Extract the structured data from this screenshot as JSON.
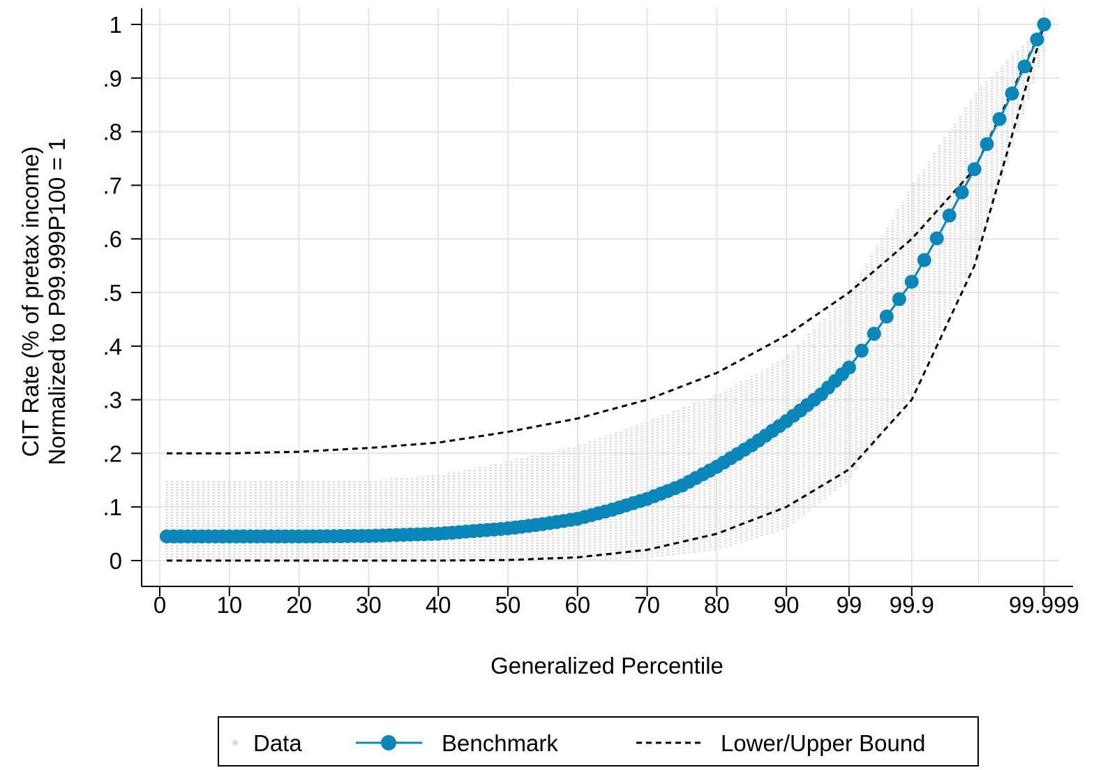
{
  "chart_data": {
    "type": "scatter",
    "xlabel": "Generalized Percentile",
    "ylabel_lines": [
      "CIT Rate (% of pretax income)",
      "Normalized to P99.999P100 = 1"
    ],
    "x_ticks": [
      "0",
      "10",
      "20",
      "30",
      "40",
      "50",
      "60",
      "70",
      "80",
      "90",
      "99",
      "99.9",
      "99.999"
    ],
    "y_ticks": [
      "0",
      ".1",
      ".2",
      ".3",
      ".4",
      ".5",
      ".6",
      ".7",
      ".8",
      ".9",
      "1"
    ],
    "ylim": [
      0,
      1
    ],
    "grid": true,
    "legend_position": "bottom",
    "legend": [
      "Data",
      "Benchmark",
      "Lower/Upper Bound"
    ],
    "colors": {
      "data": "#dcdcdc",
      "benchmark": "#0a86b8",
      "bound": "#000000"
    },
    "series": [
      {
        "name": "Data",
        "kind": "vertical-range",
        "x_slots": [
          0,
          10,
          20,
          30,
          40,
          50,
          60,
          70,
          80,
          90,
          99,
          99.9,
          99.99,
          99.999
        ],
        "x_positions": [
          0,
          10,
          20,
          30,
          40,
          50,
          60,
          70,
          80,
          90,
          99,
          108,
          117.6,
          127
        ],
        "min": [
          0.0,
          0.0,
          0.0,
          0.0,
          0.0,
          0.0,
          0.0,
          0.005,
          0.02,
          0.06,
          0.15,
          0.32,
          0.58,
          0.95
        ],
        "max": [
          0.15,
          0.15,
          0.15,
          0.15,
          0.16,
          0.185,
          0.215,
          0.26,
          0.31,
          0.38,
          0.5,
          0.7,
          0.88,
          1.0
        ]
      },
      {
        "name": "Benchmark",
        "x_positions": [
          1,
          10,
          20,
          30,
          40,
          50,
          55,
          60,
          65,
          70,
          75,
          80,
          85,
          90,
          95,
          99,
          103,
          108,
          112,
          117,
          122,
          127
        ],
        "y": [
          0.045,
          0.045,
          0.045,
          0.046,
          0.05,
          0.06,
          0.068,
          0.078,
          0.095,
          0.115,
          0.14,
          0.175,
          0.215,
          0.26,
          0.31,
          0.36,
          0.43,
          0.52,
          0.61,
          0.73,
          0.86,
          1.0
        ]
      },
      {
        "name": "Lower Bound",
        "x_positions": [
          1,
          10,
          20,
          30,
          40,
          50,
          60,
          70,
          80,
          90,
          99,
          108,
          117,
          127
        ],
        "y": [
          0.0,
          0.0,
          0.0,
          0.0,
          0.0,
          0.001,
          0.006,
          0.02,
          0.05,
          0.1,
          0.17,
          0.3,
          0.55,
          1.0
        ]
      },
      {
        "name": "Upper Bound",
        "x_positions": [
          1,
          10,
          20,
          30,
          40,
          50,
          60,
          70,
          80,
          90,
          99,
          108,
          117,
          127
        ],
        "y": [
          0.2,
          0.2,
          0.203,
          0.21,
          0.22,
          0.24,
          0.265,
          0.3,
          0.35,
          0.42,
          0.5,
          0.6,
          0.73,
          1.0
        ]
      }
    ]
  }
}
